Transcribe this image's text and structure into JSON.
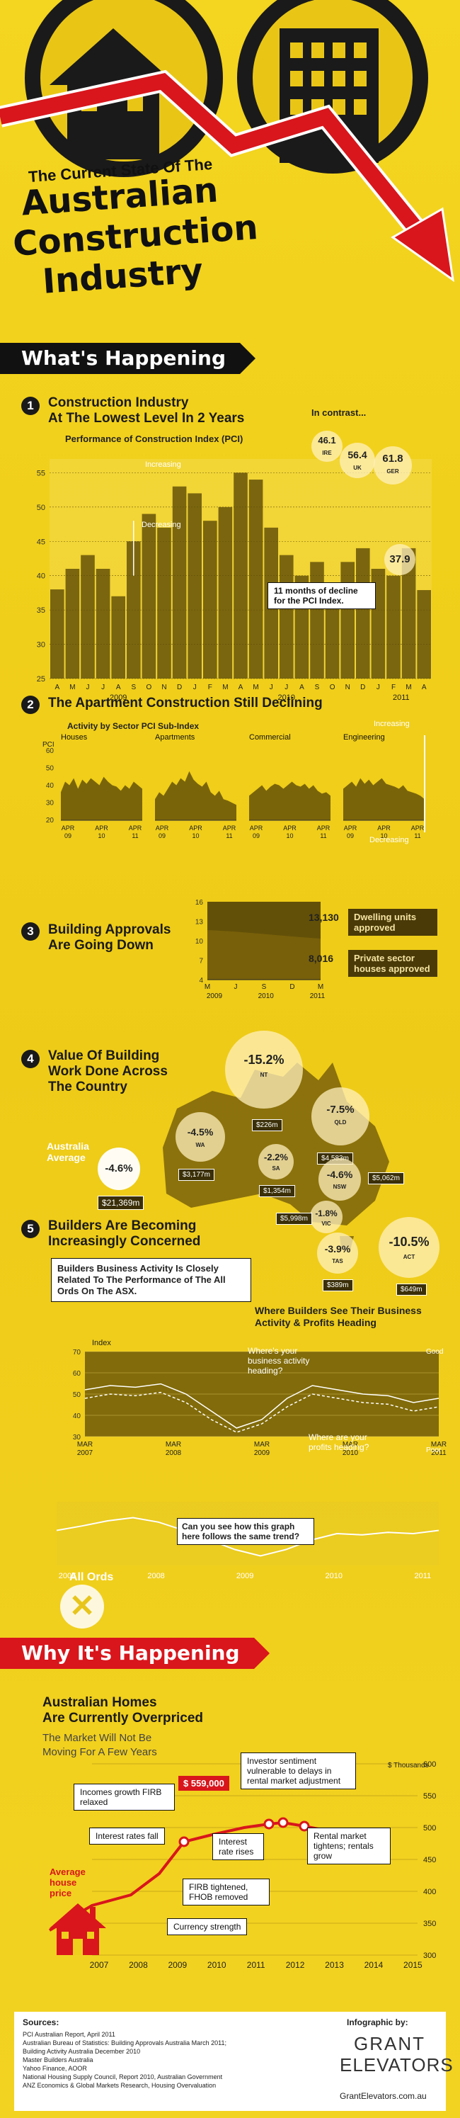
{
  "header": {
    "pre": "The Current State Of The",
    "line1": "Australian",
    "line2": "Construction",
    "line3": "Industry"
  },
  "banner1": "What's Happening",
  "banner2": "Why It's Happening",
  "s1": {
    "num": "1",
    "title_a": "Construction Industry",
    "title_b": "At The Lowest Level In 2 Years",
    "subtitle": "Performance of Construction Index (PCI)",
    "increasing": "Increasing",
    "decreasing": "Decreasing",
    "callout": "11 months of decline for the PCI Index.",
    "in_contrast": "In contrast...",
    "contrast": [
      {
        "v": "46.1",
        "c": "IRE"
      },
      {
        "v": "56.4",
        "c": "UK"
      },
      {
        "v": "61.8",
        "c": "GER"
      }
    ],
    "last": "37.9",
    "months": [
      "A",
      "M",
      "J",
      "J",
      "A",
      "S",
      "O",
      "N",
      "D",
      "J",
      "F",
      "M",
      "A",
      "M",
      "J",
      "J",
      "A",
      "S",
      "O",
      "N",
      "D",
      "J",
      "F",
      "M",
      "A"
    ],
    "years": [
      "2009",
      "2010",
      "2011"
    ],
    "yticks": [
      "55",
      "50",
      "45",
      "40",
      "35",
      "30",
      "25"
    ]
  },
  "chart_data": [
    {
      "type": "bar",
      "title": "Performance of Construction Index (PCI)",
      "ylim": [
        25,
        57
      ],
      "categories": [
        "A",
        "M",
        "J",
        "J",
        "A",
        "S",
        "O",
        "N",
        "D",
        "J",
        "F",
        "M",
        "A",
        "M",
        "J",
        "J",
        "A",
        "S",
        "O",
        "N",
        "D",
        "J",
        "F",
        "M",
        "A"
      ],
      "values": [
        38,
        41,
        43,
        41,
        37,
        45,
        49,
        47,
        53,
        52,
        48,
        50,
        55,
        54,
        47,
        43,
        40,
        42,
        39,
        42,
        44,
        41,
        40,
        44,
        37.9
      ]
    },
    {
      "type": "area",
      "title": "Building Approvals",
      "ylim": [
        4,
        16
      ],
      "series": [
        {
          "name": "Dwelling units approved",
          "final": "13,130"
        },
        {
          "name": "Private sector houses approved",
          "final": "8,016"
        }
      ]
    }
  ],
  "s2": {
    "num": "2",
    "title": "The Apartment Construction Still Declining",
    "subtitle": "Activity by Sector PCI Sub-Index",
    "sectors": [
      "Houses",
      "Apartments",
      "Commercial",
      "Engineering"
    ],
    "yl": "PCI",
    "yticks": [
      "60",
      "50",
      "40",
      "30",
      "20"
    ],
    "x": [
      "APR",
      "APR",
      "APR"
    ],
    "xy": [
      "09",
      "10",
      "11"
    ],
    "increasing": "Increasing",
    "decreasing": "Decreasing"
  },
  "s3": {
    "num": "3",
    "title_a": "Building Approvals",
    "title_b": "Are Going Down",
    "yticks": [
      "16",
      "13",
      "10",
      "7",
      "4"
    ],
    "xm": [
      "M",
      "J",
      "S",
      "D",
      "M"
    ],
    "xy": [
      "2009",
      "2010",
      "2011"
    ],
    "v1": "13,130",
    "l1": "Dwelling units approved",
    "v2": "8,016",
    "l2": "Private sector houses approved"
  },
  "s4": {
    "num": "4",
    "title_a": "Value Of Building",
    "title_b": "Work Done Across",
    "title_c": "The Country",
    "avg_label": "Australia Average",
    "avg": "-4.6%",
    "avg_amt": "$21,369m",
    "states": [
      {
        "p": "-15.2%",
        "s": "NT",
        "a": "$226m"
      },
      {
        "p": "-4.5%",
        "s": "WA",
        "a": "$3,177m"
      },
      {
        "p": "-2.2%",
        "s": "SA",
        "a": "$1,354m"
      },
      {
        "p": "-7.5%",
        "s": "QLD",
        "a": "$4,583m"
      },
      {
        "p": "-4.6%",
        "s": "NSW",
        "a": "$5,062m"
      },
      {
        "p": "-1.8%",
        "s": "VIC",
        "a": "$5,998m"
      },
      {
        "p": "-3.9%",
        "s": "TAS",
        "a": "$389m"
      },
      {
        "p": "-10.5%",
        "s": "ACT",
        "a": "$649m"
      }
    ]
  },
  "s5": {
    "num": "5",
    "title_a": "Builders Are Becoming",
    "title_b": "Increasingly Concerned",
    "box": "Builders Business Activity Is Closely Related To The Performance of The All Ords On The ASX.",
    "where": "Where Builders See Their Business Activity & Profits Heading",
    "index": "Index",
    "yticks": [
      "70",
      "60",
      "50",
      "40",
      "30"
    ],
    "q1": "Where's your business activity heading?",
    "q2": "Where are your profits heading?",
    "good": "Good",
    "poor": "Poor",
    "xm": [
      "MAR 2007",
      "MAR 2008",
      "MAR 2009",
      "MAR 2010",
      "MAR 2011"
    ],
    "allords": "All Ords",
    "same": "Can you see how this graph here follows the same trend?",
    "ay": [
      "2007",
      "2008",
      "2009",
      "2010",
      "2011"
    ]
  },
  "why": {
    "title_a": "Australian Homes",
    "title_b": "Are Currently Overpriced",
    "sub_a": "The Market Will Not Be",
    "sub_b": "Moving For A Few Years",
    "price": "$ 559,000",
    "thousands": "$ Thousands",
    "avg": "Average house price",
    "yticks": [
      "600",
      "550",
      "500",
      "450",
      "400",
      "350",
      "300"
    ],
    "years": [
      "2007",
      "2008",
      "2009",
      "2010",
      "2011",
      "2012",
      "2013",
      "2014",
      "2015"
    ],
    "labels": {
      "incomes": "Incomes growth FIRB relaxed",
      "rates_fall": "Interest rates fall",
      "investor": "Investor sentiment vulnerable to delays in rental market adjustment",
      "rates_rise": "Interest rate rises",
      "rental": "Rental market tightens; rentals grow",
      "firb": "FIRB tightened, FHOB removed",
      "currency": "Currency strength"
    }
  },
  "footer": {
    "sources_title": "Sources:",
    "sources": [
      "PCI Australian Report, April 2011",
      "Australian Bureau of Statistics: Building Approvals Australia March 2011;",
      "Building Activity Australia December 2010",
      "Master Builders Australia",
      "Yahoo Finance, AOOR",
      "National Housing Supply Council, Report 2010, Australian Government",
      "ANZ Economics & Global Markets Research, Housing Overvaluation"
    ],
    "infographic_by": "Infographic by:",
    "brand1": "GRANT",
    "brand2": "ELEVATORS",
    "url": "GrantElevators.com.au"
  }
}
